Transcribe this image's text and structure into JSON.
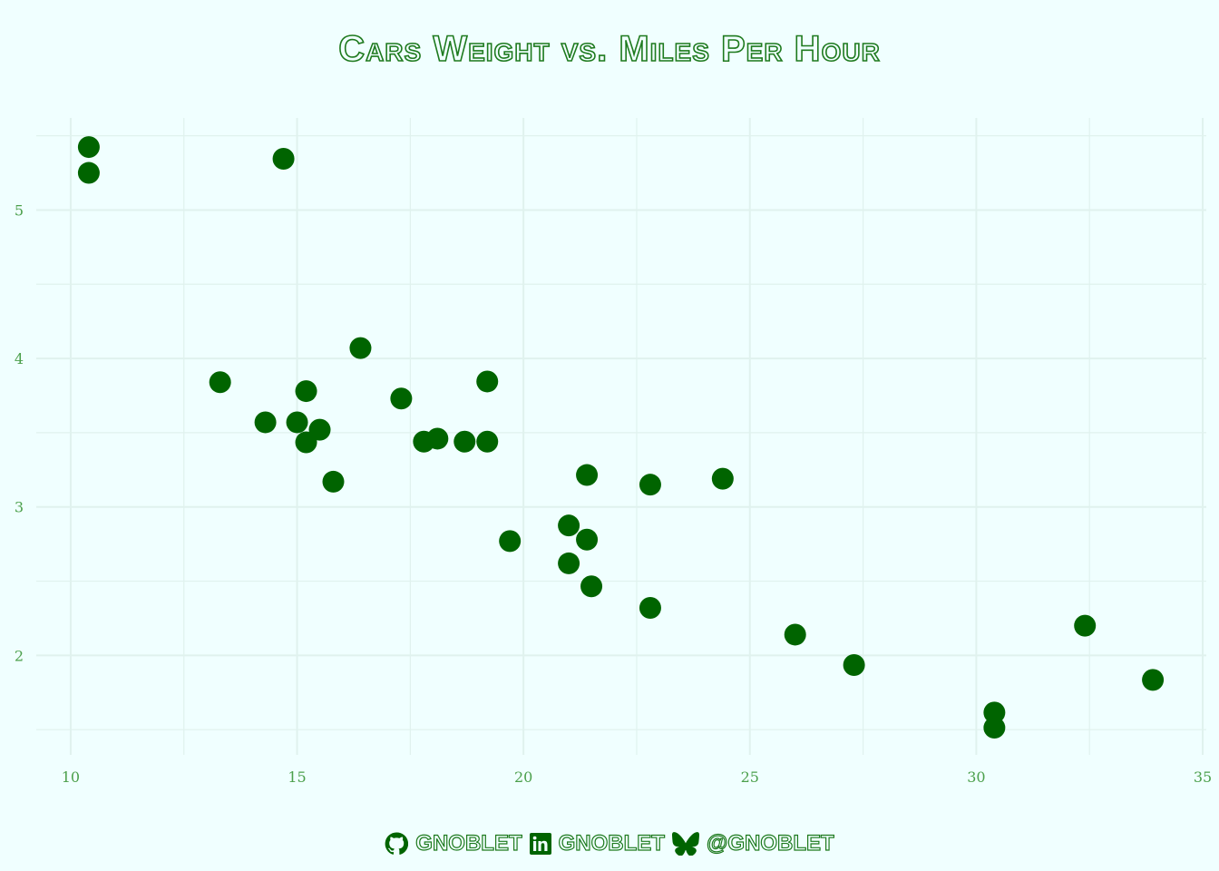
{
  "chart_data": {
    "type": "scatter",
    "title": "Cars Weight vs. Miles Per Hour",
    "xlabel": "",
    "ylabel": "",
    "xlim": [
      9.24,
      35.08
    ],
    "ylim": [
      1.33,
      5.62
    ],
    "xticks": [
      10,
      15,
      20,
      25,
      30,
      35
    ],
    "yticks": [
      2,
      3,
      4,
      5
    ],
    "grid": true,
    "point_color": "#006400",
    "points": [
      [
        21.0,
        2.62
      ],
      [
        21.0,
        2.875
      ],
      [
        22.8,
        2.32
      ],
      [
        21.4,
        3.215
      ],
      [
        18.7,
        3.44
      ],
      [
        18.1,
        3.46
      ],
      [
        14.3,
        3.57
      ],
      [
        24.4,
        3.19
      ],
      [
        22.8,
        3.15
      ],
      [
        19.2,
        3.44
      ],
      [
        17.8,
        3.44
      ],
      [
        16.4,
        4.07
      ],
      [
        17.3,
        3.73
      ],
      [
        15.2,
        3.78
      ],
      [
        10.4,
        5.25
      ],
      [
        10.4,
        5.424
      ],
      [
        14.7,
        5.345
      ],
      [
        32.4,
        2.2
      ],
      [
        30.4,
        1.615
      ],
      [
        33.9,
        1.835
      ],
      [
        21.5,
        2.465
      ],
      [
        15.5,
        3.52
      ],
      [
        15.2,
        3.435
      ],
      [
        13.3,
        3.84
      ],
      [
        19.2,
        3.845
      ],
      [
        27.3,
        1.935
      ],
      [
        26.0,
        2.14
      ],
      [
        30.4,
        1.513
      ],
      [
        15.8,
        3.17
      ],
      [
        19.7,
        2.77
      ],
      [
        15.0,
        3.57
      ],
      [
        21.4,
        2.78
      ]
    ]
  },
  "footer": {
    "github": "GNOBLET",
    "linkedin": "GNOBLET",
    "bluesky": "@GNOBLET",
    "icons": [
      "github-icon",
      "linkedin-icon",
      "bluesky-icon"
    ]
  }
}
